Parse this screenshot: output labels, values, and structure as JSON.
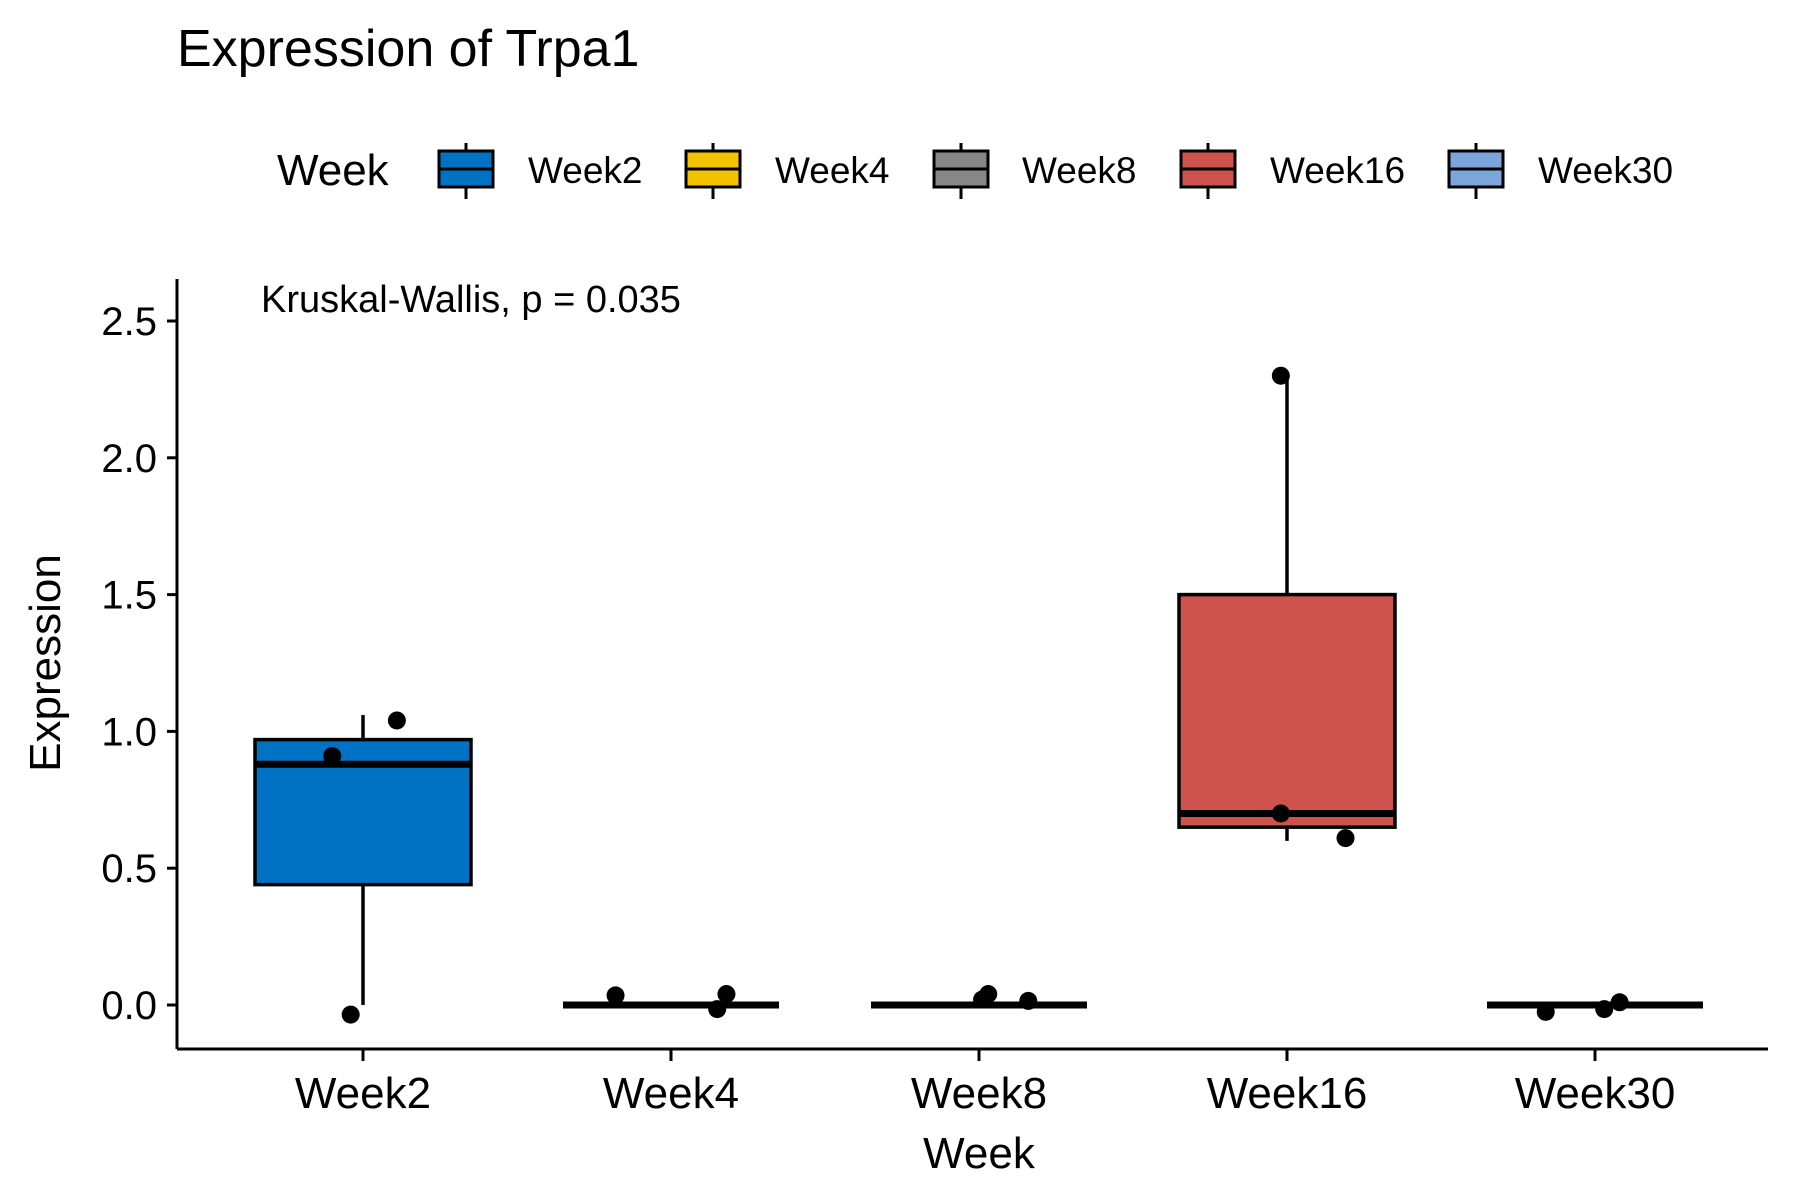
{
  "chart_data": {
    "type": "boxplot",
    "title": "Expression of Trpa1",
    "xlabel": "Week",
    "ylabel": "Expression",
    "ylim": [
      -0.16,
      2.66
    ],
    "yticks": [
      0.0,
      0.5,
      1.0,
      1.5,
      2.0,
      2.5
    ],
    "ytick_labels": [
      "0.0",
      "0.5",
      "1.0",
      "1.5",
      "2.0",
      "2.5"
    ],
    "annotation": "Kruskal-Wallis, p = 0.035",
    "legend": {
      "title": "Week",
      "position": "top"
    },
    "grid": false,
    "categories": [
      "Week2",
      "Week4",
      "Week8",
      "Week16",
      "Week30"
    ],
    "colors": [
      "#0072C3",
      "#F5C200",
      "#878787",
      "#CD534C",
      "#7AA6DC"
    ],
    "boxes": [
      {
        "name": "Week2",
        "q1": 0.44,
        "median": 0.88,
        "q3": 0.97,
        "whisker_low": 0.0,
        "whisker_high": 1.06
      },
      {
        "name": "Week4",
        "q1": 0.0,
        "median": 0.0,
        "q3": 0.0,
        "whisker_low": 0.0,
        "whisker_high": 0.0
      },
      {
        "name": "Week8",
        "q1": 0.0,
        "median": 0.0,
        "q3": 0.0,
        "whisker_low": 0.0,
        "whisker_high": 0.0
      },
      {
        "name": "Week16",
        "q1": 0.65,
        "median": 0.7,
        "q3": 1.5,
        "whisker_low": 0.6,
        "whisker_high": 2.3
      },
      {
        "name": "Week30",
        "q1": 0.0,
        "median": 0.0,
        "q3": 0.0,
        "whisker_low": 0.0,
        "whisker_high": 0.0
      }
    ],
    "points": [
      {
        "category": "Week2",
        "y": 0.91,
        "jitter": -0.1
      },
      {
        "category": "Week2",
        "y": 1.04,
        "jitter": 0.11
      },
      {
        "category": "Week2",
        "y": -0.035,
        "jitter": -0.04
      },
      {
        "category": "Week4",
        "y": 0.035,
        "jitter": -0.18
      },
      {
        "category": "Week4",
        "y": 0.04,
        "jitter": 0.18
      },
      {
        "category": "Week4",
        "y": -0.015,
        "jitter": 0.15
      },
      {
        "category": "Week8",
        "y": 0.04,
        "jitter": 0.03
      },
      {
        "category": "Week8",
        "y": 0.02,
        "jitter": 0.01
      },
      {
        "category": "Week8",
        "y": 0.015,
        "jitter": 0.16
      },
      {
        "category": "Week16",
        "y": 2.3,
        "jitter": -0.02
      },
      {
        "category": "Week16",
        "y": 0.7,
        "jitter": -0.02
      },
      {
        "category": "Week16",
        "y": 0.61,
        "jitter": 0.19
      },
      {
        "category": "Week30",
        "y": -0.025,
        "jitter": -0.16
      },
      {
        "category": "Week30",
        "y": -0.015,
        "jitter": 0.03
      },
      {
        "category": "Week30",
        "y": 0.01,
        "jitter": 0.08
      }
    ]
  }
}
